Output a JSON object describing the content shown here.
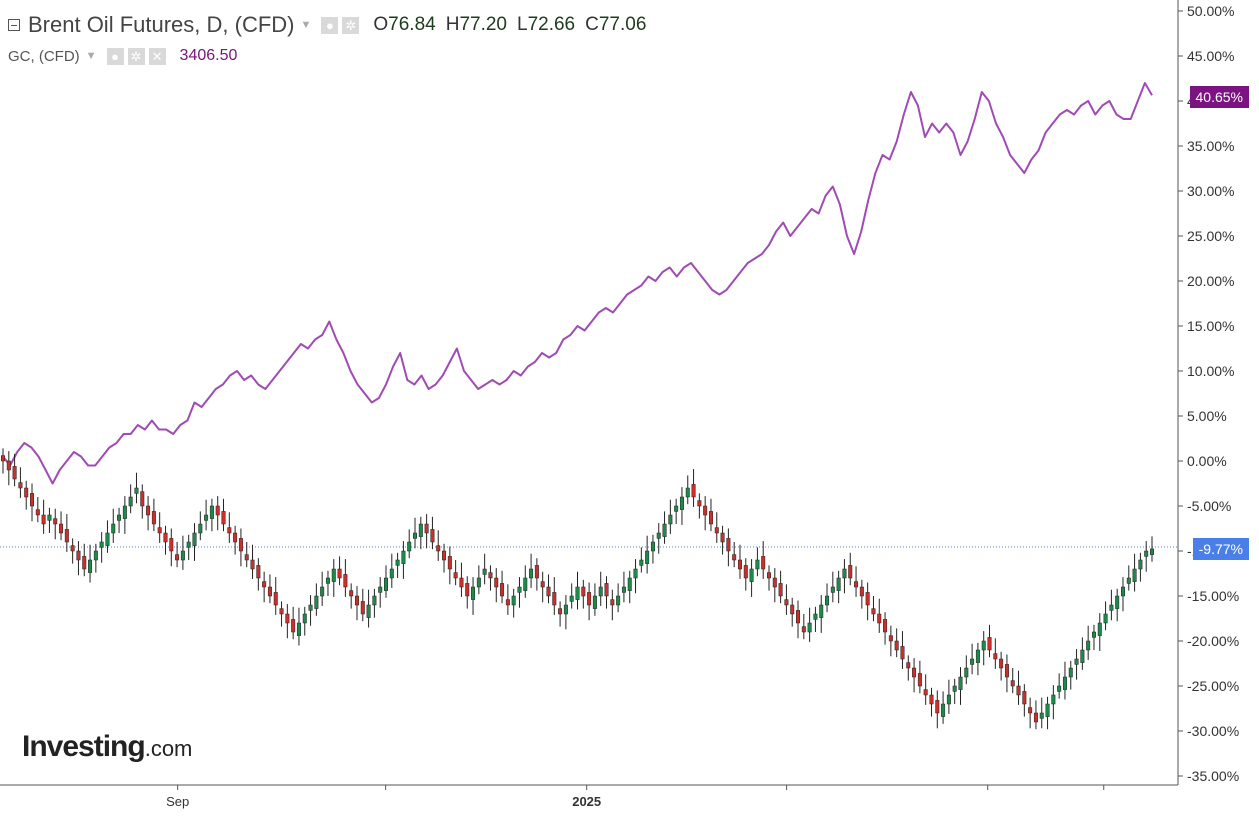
{
  "legend": {
    "main_title": "Brent Oil Futures, D, (CFD)",
    "ohlc": [
      {
        "key": "O",
        "value": "76.84"
      },
      {
        "key": "H",
        "value": "77.20"
      },
      {
        "key": "L",
        "value": "72.66"
      },
      {
        "key": "C",
        "value": "77.06"
      }
    ],
    "gc_title": "GC, (CFD)",
    "gc_value": "3406.50"
  },
  "price_tags": {
    "gc": "40.65%",
    "brent": "-9.77%"
  },
  "logo": {
    "name": "Investing",
    "suffix": ".com"
  },
  "colors": {
    "gold_line": "#a04bb5",
    "up": "#1e8a4a",
    "down": "#c9302c",
    "gc_tag": "#7b1480",
    "brent_tag": "#4a7fe8",
    "crosshair": "#4a7fe8"
  },
  "chart_data": {
    "type": "line",
    "y_axis": {
      "unit": "%",
      "range": [
        -35,
        50
      ],
      "ticks": [
        "50.00%",
        "45.00%",
        "40.00%",
        "35.00%",
        "30.00%",
        "25.00%",
        "20.00%",
        "15.00%",
        "10.00%",
        "5.00%",
        "0.00%",
        "-5.00%",
        "-10.00%",
        "-15.00%",
        "-20.00%",
        "-25.00%",
        "-30.00%",
        "-35.00%"
      ],
      "tick_values": [
        50,
        45,
        40,
        35,
        30,
        25,
        20,
        15,
        10,
        5,
        0,
        -5,
        -10,
        -15,
        -20,
        -25,
        -30,
        -35
      ],
      "position": "right"
    },
    "x_axis": {
      "labels": [
        {
          "text": "Sep",
          "t": 0.152
        },
        {
          "text": "2025",
          "t": 0.508
        }
      ],
      "tick_t": [
        0.152,
        0.333,
        0.508,
        0.682,
        0.857,
        0.958
      ]
    },
    "series": [
      {
        "name": "GC, (CFD)",
        "type": "line",
        "last": 40.65,
        "values": [
          0.5,
          -0.5,
          1.0,
          2.0,
          1.5,
          0.5,
          -1.0,
          -2.5,
          -1.0,
          0.0,
          1.0,
          0.5,
          -0.5,
          -0.5,
          0.5,
          1.5,
          2.0,
          3.0,
          3.0,
          4.0,
          3.5,
          4.5,
          3.5,
          3.5,
          3.0,
          4.0,
          4.5,
          6.5,
          6.0,
          7.0,
          8.0,
          8.5,
          9.5,
          10.0,
          9.0,
          9.5,
          8.5,
          8.0,
          9.0,
          10.0,
          11.0,
          12.0,
          13.0,
          12.5,
          13.5,
          14.0,
          15.5,
          13.5,
          12.0,
          10.0,
          8.5,
          7.5,
          6.5,
          7.0,
          8.5,
          10.5,
          12.0,
          9.0,
          8.5,
          9.5,
          8.0,
          8.5,
          9.5,
          11.0,
          12.5,
          10.0,
          9.0,
          8.0,
          8.5,
          9.0,
          8.5,
          9.0,
          10.0,
          9.5,
          10.5,
          11.0,
          12.0,
          11.5,
          12.0,
          13.5,
          14.0,
          15.0,
          14.5,
          15.5,
          16.5,
          17.0,
          16.5,
          17.5,
          18.5,
          19.0,
          19.5,
          20.5,
          20.0,
          21.0,
          21.5,
          20.5,
          21.5,
          22.0,
          21.0,
          20.0,
          19.0,
          18.5,
          19.0,
          20.0,
          21.0,
          22.0,
          22.5,
          23.0,
          24.0,
          25.5,
          26.5,
          25.0,
          26.0,
          27.0,
          28.0,
          27.5,
          29.5,
          30.5,
          28.5,
          25.0,
          23.0,
          25.5,
          29.0,
          32.0,
          34.0,
          33.5,
          35.5,
          38.5,
          41.0,
          39.5,
          36.0,
          37.5,
          36.5,
          37.5,
          36.5,
          34.0,
          35.5,
          38.0,
          41.0,
          40.0,
          37.5,
          36.0,
          34.0,
          33.0,
          32.0,
          33.5,
          34.5,
          36.5,
          37.5,
          38.5,
          39.0,
          38.5,
          39.5,
          40.0,
          38.5,
          39.5,
          40.0,
          38.5,
          38.0,
          38.0,
          40.0,
          42.0,
          40.65
        ]
      },
      {
        "name": "Brent Oil Futures, D, (CFD)",
        "type": "candlestick",
        "last": -9.77,
        "closes": [
          0,
          -1,
          -2,
          -3,
          -4,
          -5,
          -6,
          -7,
          -6,
          -7,
          -8,
          -9,
          -10,
          -11,
          -12,
          -11,
          -10,
          -9,
          -8,
          -7,
          -6,
          -5,
          -4,
          -3,
          -5,
          -6,
          -7,
          -8,
          -9,
          -10,
          -11,
          -10,
          -9,
          -8,
          -7,
          -6,
          -5,
          -6,
          -7,
          -8,
          -9,
          -10,
          -11,
          -12,
          -13,
          -14,
          -15,
          -16,
          -17,
          -18,
          -19,
          -18,
          -17,
          -16,
          -15,
          -14,
          -13,
          -12,
          -13,
          -14,
          -15,
          -16,
          -17,
          -16,
          -15,
          -14,
          -13,
          -12,
          -11,
          -10,
          -9,
          -8,
          -7,
          -8,
          -9,
          -10,
          -11,
          -12,
          -13,
          -14,
          -15,
          -14,
          -13,
          -12,
          -13,
          -14,
          -15,
          -16,
          -15,
          -14,
          -13,
          -12,
          -13,
          -14,
          -15,
          -16,
          -17,
          -16,
          -15,
          -14,
          -15,
          -16,
          -15,
          -14,
          -15,
          -16,
          -15,
          -14,
          -13,
          -12,
          -11,
          -10,
          -9,
          -8,
          -7,
          -6,
          -5,
          -4,
          -3,
          -4,
          -5,
          -6,
          -7,
          -8,
          -9,
          -10,
          -11,
          -12,
          -13,
          -12,
          -11,
          -12,
          -13,
          -14,
          -15,
          -16,
          -17,
          -18,
          -19,
          -18,
          -17,
          -16,
          -15,
          -14,
          -13,
          -12,
          -13,
          -14,
          -15,
          -16,
          -17,
          -18,
          -19,
          -20,
          -21,
          -22,
          -23,
          -24,
          -25,
          -26,
          -27,
          -28,
          -27,
          -26,
          -25,
          -24,
          -23,
          -22,
          -21,
          -20,
          -21,
          -22,
          -23,
          -24,
          -25,
          -26,
          -27,
          -28,
          -29,
          -28,
          -27,
          -26,
          -25,
          -24,
          -23,
          -22,
          -21,
          -20,
          -19,
          -18,
          -17,
          -16,
          -15,
          -14,
          -13,
          -12,
          -11,
          -10,
          -9.77
        ]
      }
    ]
  }
}
